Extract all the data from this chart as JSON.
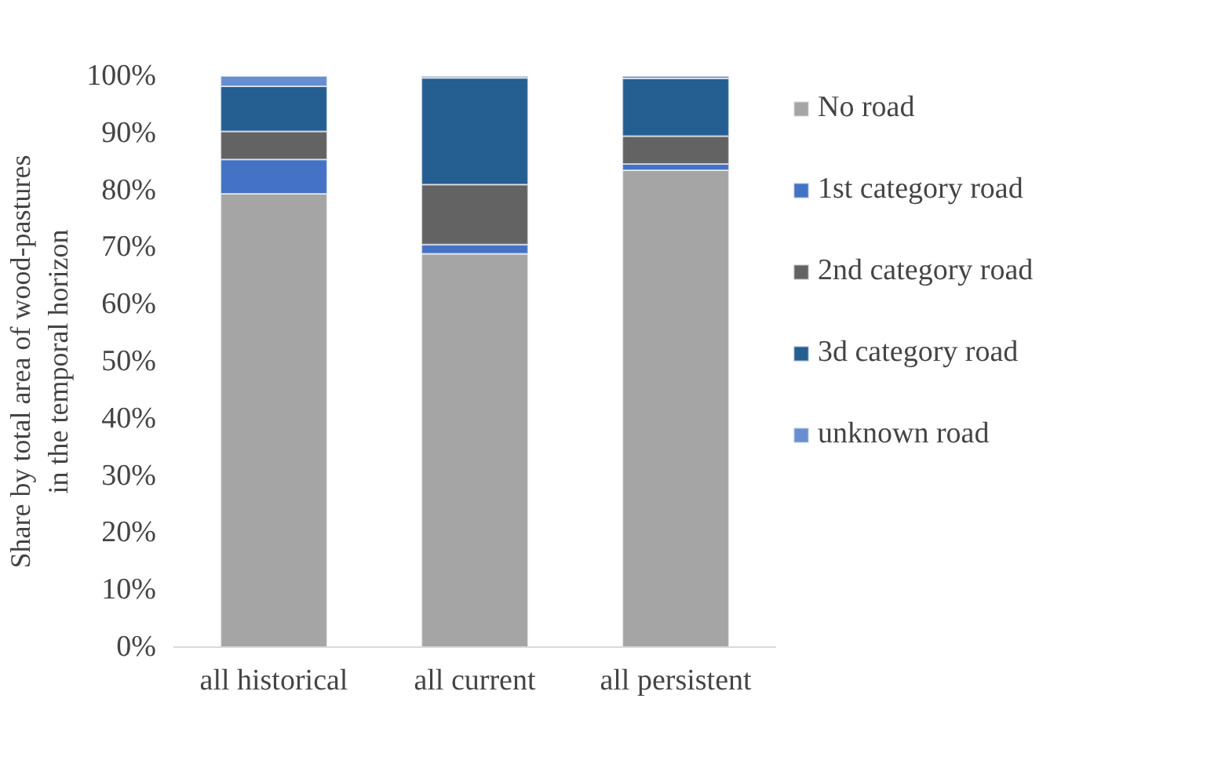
{
  "chart_data": {
    "type": "bar",
    "stacked": true,
    "ylabel": "Share by total area of wood-pastures\nin the temporal horizon",
    "categories": [
      "all historical",
      "all current",
      "all persistent"
    ],
    "series": [
      {
        "name": "No road",
        "color": "#a5a5a5",
        "values": [
          79.4,
          68.9,
          83.5
        ]
      },
      {
        "name": "1st category road",
        "color": "#4472c4",
        "values": [
          6.0,
          1.6,
          1.1
        ]
      },
      {
        "name": "2nd category road",
        "color": "#636363",
        "values": [
          4.9,
          10.5,
          4.9
        ]
      },
      {
        "name": "3d category road",
        "color": "#255e91",
        "values": [
          7.9,
          18.7,
          10.1
        ]
      },
      {
        "name": "unknown road",
        "color": "#698ed0",
        "values": [
          1.8,
          0.3,
          0.4
        ]
      }
    ],
    "ylim": [
      0,
      100
    ],
    "yticks": [
      {
        "value": 0,
        "label": "0%"
      },
      {
        "value": 10,
        "label": "10%"
      },
      {
        "value": 20,
        "label": "20%"
      },
      {
        "value": 30,
        "label": "30%"
      },
      {
        "value": 40,
        "label": "40%"
      },
      {
        "value": 50,
        "label": "50%"
      },
      {
        "value": 60,
        "label": "60%"
      },
      {
        "value": 70,
        "label": "70%"
      },
      {
        "value": 80,
        "label": "80%"
      },
      {
        "value": 90,
        "label": "90%"
      },
      {
        "value": 100,
        "label": "100%"
      }
    ],
    "grid": false,
    "legend": "right"
  }
}
